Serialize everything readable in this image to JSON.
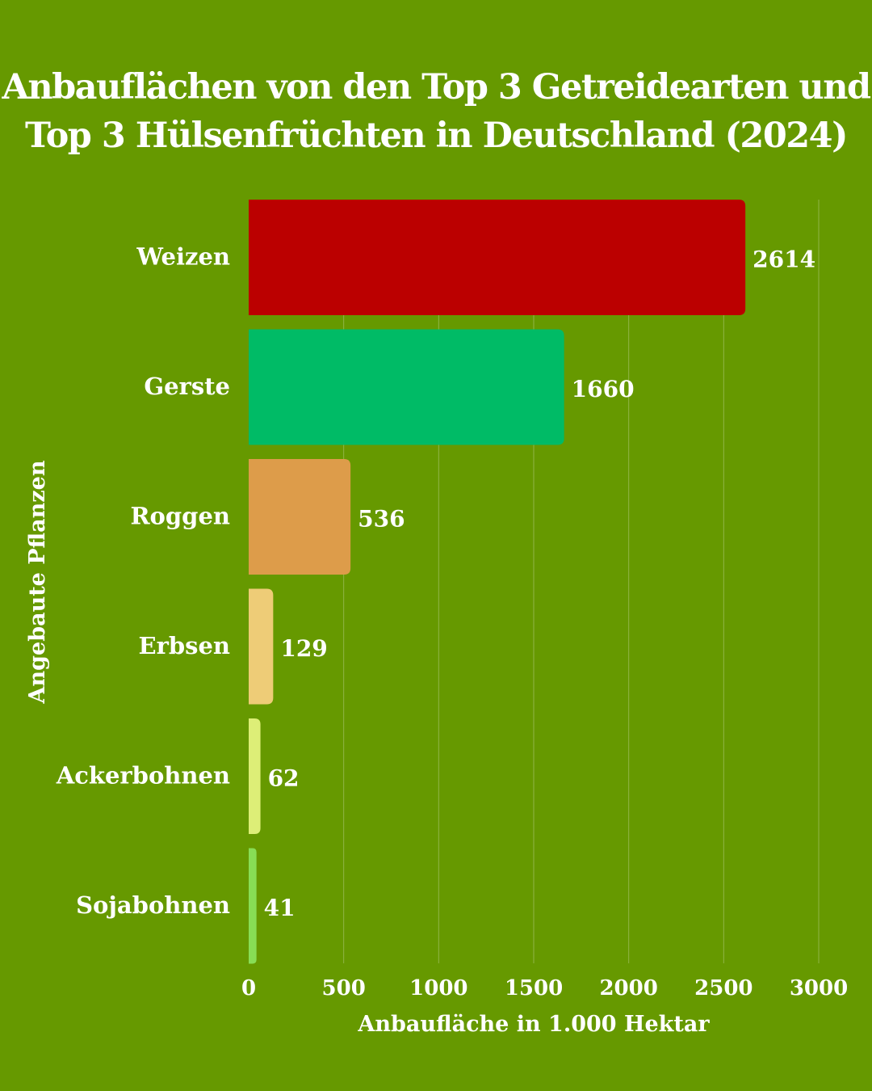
{
  "background": "#669900",
  "chart_data": {
    "type": "bar",
    "orientation": "horizontal",
    "title": [
      "Anbauflächen von den Top 3 Getreidearten und",
      "Top 3 Hülsenfrüchten in Deutschland (2024)"
    ],
    "xlabel": "Anbaufläche in 1.000 Hektar",
    "ylabel": "Angebaute Pflanzen",
    "categories": [
      "Weizen",
      "Gerste",
      "Roggen",
      "Erbsen",
      "Ackerbohnen",
      "Sojabohnen"
    ],
    "values": [
      2614,
      1660,
      536,
      129,
      62,
      41
    ],
    "data_labels": [
      "2614",
      "1660",
      "536",
      "129",
      "62",
      "41"
    ],
    "colors": [
      "#bb0000",
      "#00bb66",
      "#dd9c4a",
      "#eecc77",
      "#ddee77",
      "#88dd55"
    ],
    "xlim": [
      0,
      3000
    ],
    "x_ticks": [
      "0",
      "500",
      "1000",
      "1500",
      "2000",
      "2500",
      "3000"
    ],
    "grid": "vertical",
    "legend": "none"
  }
}
